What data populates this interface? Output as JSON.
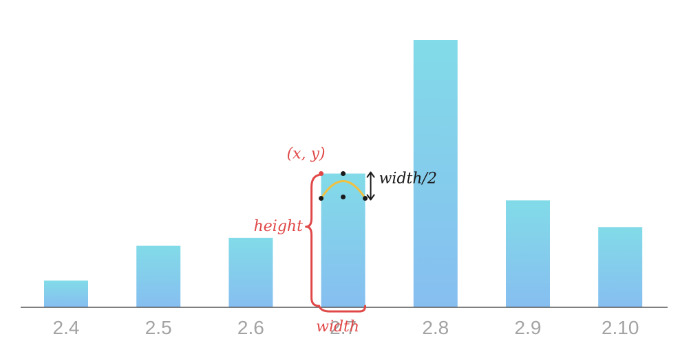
{
  "chart_data": {
    "type": "bar",
    "categories": [
      "2.4",
      "2.5",
      "2.6",
      "2.7",
      "2.8",
      "2.9",
      "2.10"
    ],
    "values": [
      10,
      23,
      26,
      50,
      100,
      40,
      30
    ],
    "ylim": [
      0,
      100
    ],
    "grid": false,
    "legend": "none",
    "colors": {
      "bar_top": "#82dbe8",
      "bar_bottom": "#86bef0",
      "axis": "#555555",
      "tick_label": "#a3a3a3",
      "annotation_red": "#e04848",
      "annotation_black": "#1a1a1a",
      "annotation_arc": "#f0c040"
    }
  },
  "annotations": {
    "point_label": "(x, y)",
    "height_label": "height",
    "width_label": "width",
    "half_width_label": "width/2",
    "target_category_index": 3
  }
}
